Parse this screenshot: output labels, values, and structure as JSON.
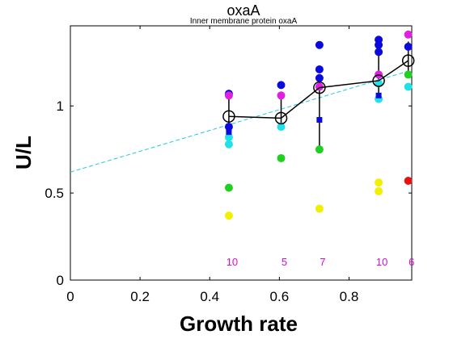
{
  "chart_data": {
    "type": "scatter",
    "title": "oxaA",
    "subtitle": "Inner membrane protein oxaA",
    "xlabel": "Growth rate",
    "ylabel": "U/L",
    "xlim": [
      0,
      0.98
    ],
    "ylim": [
      0,
      1.46
    ],
    "xticks": [
      "0",
      "0.2",
      "0.4",
      "0.6",
      "0.8"
    ],
    "yticks": [
      "0",
      "0.5",
      "1"
    ],
    "grid": false,
    "colors": {
      "blue": "#0a0adc",
      "magenta": "#e020e0",
      "cyan": "#20e0e8",
      "green": "#20d020",
      "yellow": "#f0f000",
      "red": "#e81010",
      "fit_line": "#20c8e8"
    },
    "fit_line": {
      "x": [
        0,
        0.97
      ],
      "y": [
        0.62,
        1.2
      ]
    },
    "mean_series": {
      "x": [
        0.455,
        0.605,
        0.715,
        0.885,
        0.97
      ],
      "y": [
        0.94,
        0.93,
        1.105,
        1.145,
        1.26
      ],
      "err_low": [
        0.8,
        0.89,
        0.75,
        1.06,
        1.17
      ],
      "err_high": [
        1.05,
        1.06,
        1.16,
        1.31,
        1.37
      ]
    },
    "points": [
      {
        "x": 0.455,
        "y": 1.07,
        "color": "blue"
      },
      {
        "x": 0.455,
        "y": 1.06,
        "color": "magenta"
      },
      {
        "x": 0.455,
        "y": 0.88,
        "color": "blue"
      },
      {
        "x": 0.455,
        "y": 0.82,
        "color": "cyan"
      },
      {
        "x": 0.455,
        "y": 0.78,
        "color": "cyan"
      },
      {
        "x": 0.455,
        "y": 0.53,
        "color": "green"
      },
      {
        "x": 0.455,
        "y": 0.37,
        "color": "yellow"
      },
      {
        "x": 0.605,
        "y": 1.12,
        "color": "blue"
      },
      {
        "x": 0.605,
        "y": 1.06,
        "color": "magenta"
      },
      {
        "x": 0.605,
        "y": 0.88,
        "color": "cyan"
      },
      {
        "x": 0.605,
        "y": 0.7,
        "color": "green"
      },
      {
        "x": 0.715,
        "y": 1.35,
        "color": "blue"
      },
      {
        "x": 0.715,
        "y": 1.21,
        "color": "blue"
      },
      {
        "x": 0.715,
        "y": 1.16,
        "color": "blue"
      },
      {
        "x": 0.715,
        "y": 1.11,
        "color": "magenta"
      },
      {
        "x": 0.715,
        "y": 0.75,
        "color": "green"
      },
      {
        "x": 0.715,
        "y": 0.41,
        "color": "yellow"
      },
      {
        "x": 0.885,
        "y": 1.38,
        "color": "blue"
      },
      {
        "x": 0.885,
        "y": 1.35,
        "color": "blue"
      },
      {
        "x": 0.885,
        "y": 1.31,
        "color": "blue"
      },
      {
        "x": 0.885,
        "y": 1.18,
        "color": "magenta"
      },
      {
        "x": 0.885,
        "y": 1.13,
        "color": "cyan"
      },
      {
        "x": 0.885,
        "y": 1.04,
        "color": "cyan"
      },
      {
        "x": 0.885,
        "y": 0.56,
        "color": "yellow"
      },
      {
        "x": 0.885,
        "y": 0.51,
        "color": "yellow"
      },
      {
        "x": 0.97,
        "y": 1.41,
        "color": "magenta"
      },
      {
        "x": 0.97,
        "y": 1.34,
        "color": "blue"
      },
      {
        "x": 0.97,
        "y": 1.18,
        "color": "green"
      },
      {
        "x": 0.97,
        "y": 1.11,
        "color": "cyan"
      },
      {
        "x": 0.97,
        "y": 0.57,
        "color": "red"
      }
    ],
    "square_markers": [
      {
        "x": 0.455,
        "y": 0.85,
        "color": "blue"
      },
      {
        "x": 0.715,
        "y": 0.92,
        "color": "blue"
      },
      {
        "x": 0.885,
        "y": 1.06,
        "color": "blue"
      }
    ],
    "counts": [
      {
        "x": 0.455,
        "label": "10"
      },
      {
        "x": 0.605,
        "label": "5"
      },
      {
        "x": 0.715,
        "label": "7"
      },
      {
        "x": 0.885,
        "label": "10"
      },
      {
        "x": 0.97,
        "label": "6"
      }
    ]
  }
}
